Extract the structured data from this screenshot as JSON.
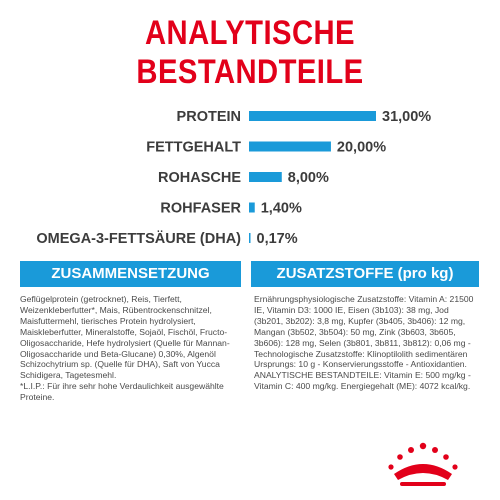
{
  "title": "ANALYTISCHE BESTANDTEILE",
  "chart_data": {
    "type": "bar",
    "orientation": "horizontal",
    "categories": [
      "PROTEIN",
      "FETTGEHALT",
      "ROHASCHE",
      "ROHFASER",
      "OMEGA-3-FETTSÄURE (DHA)"
    ],
    "values": [
      31.0,
      20.0,
      8.0,
      1.4,
      0.17
    ],
    "value_labels": [
      "31,00%",
      "20,00%",
      "8,00%",
      "1,40%",
      "0,17%"
    ],
    "title": "",
    "xlabel": "",
    "ylabel": "",
    "xlim": [
      0,
      31
    ],
    "grid": false,
    "bar_color": "#1a9ad9"
  },
  "composition": {
    "header": "ZUSAMMENSETZUNG",
    "text": "Geflügelprotein (getrocknet), Reis, Tierfett, Weizenkleberfutter*, Mais, Rübentrockenschnitzel, Maisfuttermehl, tierisches Protein hydrolysiert, Maiskleberfutter, Mineralstoffe, Sojaöl, Fischöl, Fructo-Oligosaccharide, Hefe hydrolysiert (Quelle für Mannan-Oligosaccharide und Beta-Glucane) 0,30%, Algenöl Schizochytrium sp. (Quelle für DHA), Saft von Yucca Schidigera, Tagetesmehl.\n*L.I.P.: Für ihre sehr hohe Verdaulichkeit ausgewählte Proteine."
  },
  "additives": {
    "header": "ZUSATZSTOFFE (pro kg)",
    "text": "Ernährungsphysiologische Zusatzstoffe: Vitamin A: 21500 IE, Vitamin D3: 1000 IE, Eisen (3b103): 38 mg, Jod (3b201, 3b202): 3,8 mg, Kupfer (3b405, 3b406): 12 mg, Mangan (3b502, 3b504): 50 mg, Zink (3b603, 3b605, 3b606): 128 mg, Selen (3b801, 3b811, 3b812): 0,06 mg - Technologische Zusatzstoffe: Klinoptilolith sedimentären Ursprungs: 10 g - Konservierungsstoffe - Antioxidantien.\nANALYTISCHE BESTANDTEILE: Vitamin E: 500 mg/kg - Vitamin C: 400 mg/kg. Energiegehalt (ME): 4072 kcal/kg."
  },
  "colors": {
    "title_red": "#e2001a",
    "accent_blue": "#1a9ad9",
    "logo_red": "#e2001a"
  },
  "logo_icon": "crown-logo-icon"
}
